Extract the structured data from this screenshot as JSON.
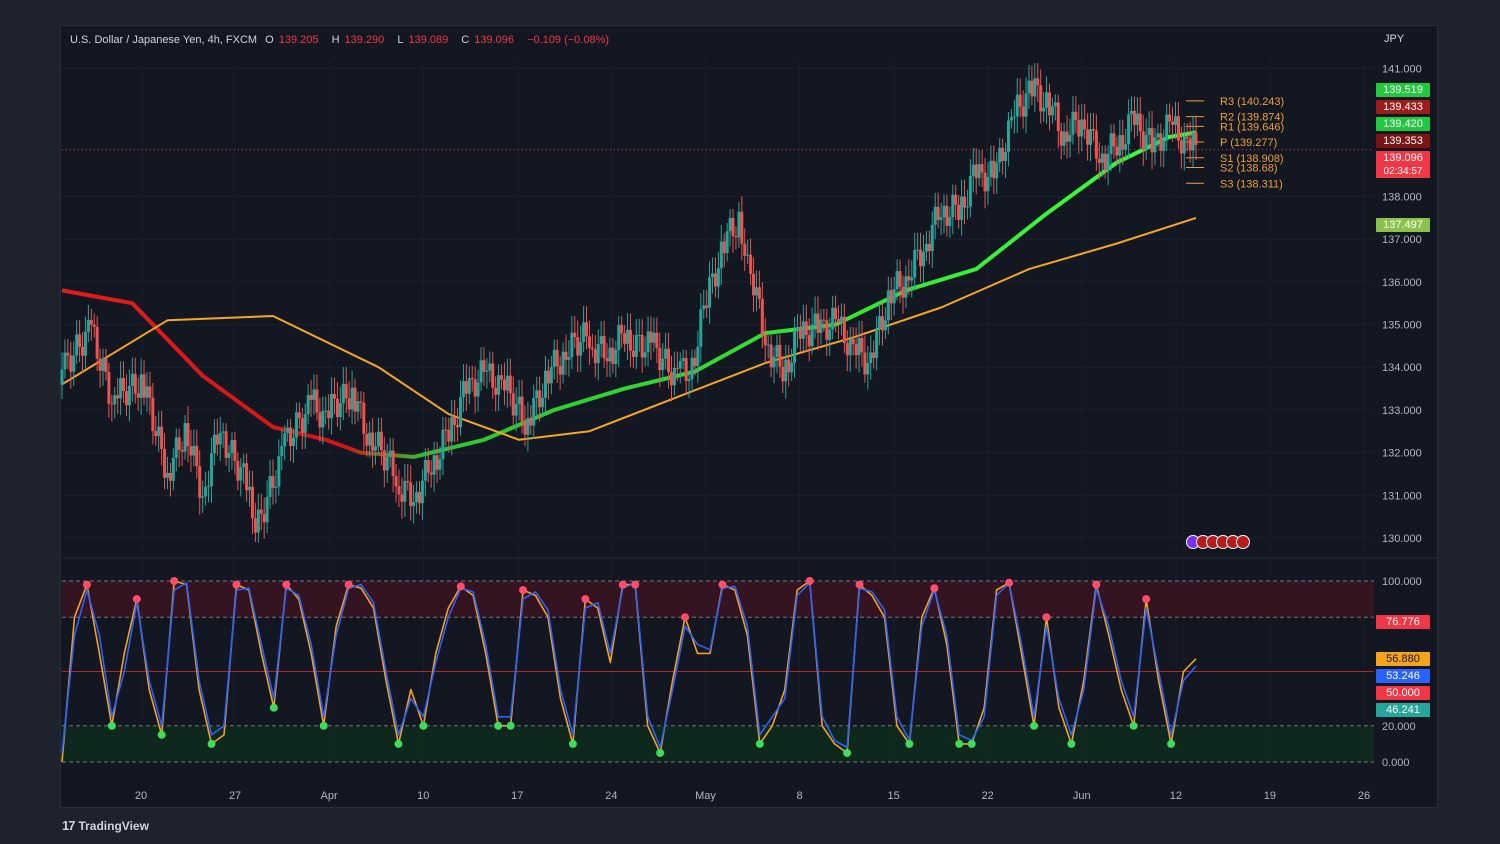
{
  "header": {
    "symbol": "U.S. Dollar / Japanese Yen, 4h, FXCM",
    "o_label": "O",
    "o_value": "139.205",
    "h_label": "H",
    "h_value": "139.290",
    "l_label": "L",
    "l_value": "139.089",
    "c_label": "C",
    "c_value": "139.096",
    "change": "−0.109 (−0.08%)"
  },
  "currency": "JPY",
  "branding": {
    "logo_text": "TradingView",
    "logo_mark": "17"
  },
  "price_badges": [
    {
      "value": "139.519",
      "color": "#22c93e"
    },
    {
      "value": "139.433",
      "color": "#9c1c1c"
    },
    {
      "value": "139.420",
      "color": "#22c93e"
    },
    {
      "value": "139.353",
      "color": "#7a1414"
    },
    {
      "value": "139.096",
      "color": "#f23645"
    },
    {
      "value": "137.497",
      "color": "#8bc34a"
    }
  ],
  "countdown": "02:34:57",
  "osc_badges": [
    {
      "value": "76.776",
      "color": "#f23645"
    },
    {
      "value": "56.880",
      "color": "#f7a21b"
    },
    {
      "value": "53.246",
      "color": "#2962ff"
    },
    {
      "value": "50.000",
      "color": "#f23645"
    },
    {
      "value": "46.241",
      "color": "#26a69a"
    }
  ],
  "chart_data": [
    {
      "type": "candlestick",
      "title": "U.S. Dollar / Japanese Yen, 4h, FXCM",
      "ylim": [
        129.6,
        141.2
      ],
      "yticks": [
        "141.000",
        "138.000",
        "137.000",
        "136.000",
        "135.000",
        "134.000",
        "133.000",
        "132.000",
        "131.000",
        "130.000"
      ],
      "xticks": [
        "20",
        "27",
        "Apr",
        "10",
        "17",
        "24",
        "May",
        "8",
        "15",
        "22",
        "Jun",
        "12",
        "19",
        "26"
      ],
      "close_path_points": [
        [
          0,
          133.6
        ],
        [
          3,
          134.8
        ],
        [
          6,
          133.0
        ],
        [
          9,
          133.6
        ],
        [
          12,
          131.5
        ],
        [
          14,
          132.5
        ],
        [
          16,
          131.0
        ],
        [
          18,
          132.7
        ],
        [
          21,
          131.3
        ],
        [
          22,
          130.4
        ],
        [
          25,
          131.9
        ],
        [
          28,
          133.0
        ],
        [
          30,
          132.7
        ],
        [
          33,
          133.4
        ],
        [
          35,
          132.2
        ],
        [
          38,
          131.5
        ],
        [
          40,
          131.0
        ],
        [
          42,
          131.8
        ],
        [
          44,
          132.6
        ],
        [
          46,
          133.6
        ],
        [
          48,
          133.9
        ],
        [
          50,
          133.5
        ],
        [
          53,
          132.6
        ],
        [
          55,
          133.6
        ],
        [
          57,
          134.2
        ],
        [
          60,
          134.8
        ],
        [
          62,
          134.4
        ],
        [
          64,
          134.9
        ],
        [
          67,
          134.5
        ],
        [
          70,
          133.7
        ],
        [
          72,
          133.9
        ],
        [
          73,
          135.5
        ],
        [
          75,
          136.6
        ],
        [
          77,
          137.4
        ],
        [
          78,
          136.3
        ],
        [
          80,
          134.7
        ],
        [
          82,
          134.0
        ],
        [
          84,
          135.0
        ],
        [
          86,
          135.0
        ],
        [
          88,
          135.1
        ],
        [
          90,
          134.3
        ],
        [
          92,
          134.0
        ],
        [
          94,
          135.5
        ],
        [
          96,
          136.0
        ],
        [
          98,
          136.8
        ],
        [
          100,
          137.8
        ],
        [
          102,
          137.8
        ],
        [
          104,
          138.7
        ],
        [
          106,
          138.5
        ],
        [
          108,
          139.7
        ],
        [
          110,
          140.4
        ],
        [
          112,
          140.1
        ],
        [
          114,
          139.3
        ],
        [
          116,
          139.8
        ],
        [
          118,
          139.0
        ],
        [
          120,
          139.3
        ],
        [
          122,
          140.0
        ],
        [
          124,
          139.2
        ],
        [
          126,
          139.7
        ],
        [
          128,
          139.1
        ],
        [
          129,
          139.1
        ]
      ],
      "pivots": [
        {
          "label": "R3",
          "value": 140.243
        },
        {
          "label": "R2",
          "value": 139.874
        },
        {
          "label": "R1",
          "value": 139.646
        },
        {
          "label": "P",
          "value": 139.277
        },
        {
          "label": "S1",
          "value": 138.908
        },
        {
          "label": "S2",
          "value": 138.68
        },
        {
          "label": "S3",
          "value": 138.311
        }
      ],
      "moving_averages": [
        {
          "points": [
            [
              0,
              135.8
            ],
            [
              8,
              135.5
            ],
            [
              16,
              133.8
            ],
            [
              24,
              132.6
            ],
            [
              30,
              132.3
            ],
            [
              34,
              132.0
            ],
            [
              40,
              131.9
            ],
            [
              48,
              132.3
            ],
            [
              56,
              133.0
            ],
            [
              64,
              133.5
            ],
            [
              72,
              133.9
            ],
            [
              80,
              134.8
            ],
            [
              88,
              135.0
            ],
            [
              96,
              135.8
            ],
            [
              104,
              136.3
            ],
            [
              112,
              137.6
            ],
            [
              120,
              138.8
            ],
            [
              126,
              139.4
            ],
            [
              129,
              139.5
            ]
          ],
          "color": "red_to_green"
        },
        {
          "points": [
            [
              0,
              133.6
            ],
            [
              12,
              135.1
            ],
            [
              24,
              135.2
            ],
            [
              36,
              134.0
            ],
            [
              44,
              132.9
            ],
            [
              52,
              132.3
            ],
            [
              60,
              132.5
            ],
            [
              70,
              133.3
            ],
            [
              80,
              134.1
            ],
            [
              90,
              134.7
            ],
            [
              100,
              135.4
            ],
            [
              110,
              136.3
            ],
            [
              120,
              136.9
            ],
            [
              129,
              137.5
            ]
          ],
          "color": "#f5a623"
        }
      ]
    },
    {
      "type": "line",
      "title": "",
      "ylim": [
        0,
        100
      ],
      "yticks": [
        "100.000",
        "20.000",
        "0.000"
      ],
      "levels": [
        100,
        80,
        50,
        20,
        0
      ],
      "series": [
        {
          "color": "#f7a21b",
          "values": [
            0,
            80,
            98,
            60,
            20,
            60,
            90,
            40,
            15,
            100,
            98,
            40,
            10,
            15,
            98,
            95,
            60,
            30,
            98,
            90,
            60,
            20,
            75,
            98,
            96,
            85,
            45,
            10,
            40,
            20,
            60,
            85,
            97,
            92,
            60,
            20,
            20,
            95,
            92,
            80,
            35,
            10,
            90,
            85,
            55,
            98,
            98,
            20,
            5,
            45,
            80,
            60,
            60,
            98,
            95,
            70,
            10,
            20,
            40,
            95,
            100,
            20,
            10,
            5,
            98,
            92,
            80,
            20,
            10,
            80,
            96,
            65,
            10,
            10,
            30,
            95,
            99,
            60,
            20,
            80,
            30,
            10,
            45,
            98,
            70,
            40,
            20,
            90,
            45,
            10,
            50,
            57
          ]
        },
        {
          "color": "#2962ff",
          "values": [
            5,
            70,
            95,
            70,
            25,
            50,
            88,
            45,
            20,
            95,
            99,
            45,
            15,
            20,
            95,
            96,
            65,
            35,
            96,
            92,
            65,
            25,
            70,
            96,
            98,
            88,
            50,
            15,
            35,
            25,
            55,
            80,
            96,
            94,
            65,
            25,
            25,
            90,
            94,
            84,
            40,
            15,
            85,
            88,
            60,
            96,
            99,
            25,
            8,
            40,
            75,
            65,
            62,
            96,
            97,
            75,
            15,
            25,
            35,
            92,
            99,
            25,
            12,
            8,
            96,
            94,
            84,
            25,
            12,
            75,
            95,
            70,
            15,
            12,
            25,
            92,
            99,
            65,
            25,
            75,
            35,
            15,
            40,
            96,
            75,
            45,
            25,
            85,
            50,
            15,
            45,
            53
          ]
        }
      ]
    }
  ]
}
